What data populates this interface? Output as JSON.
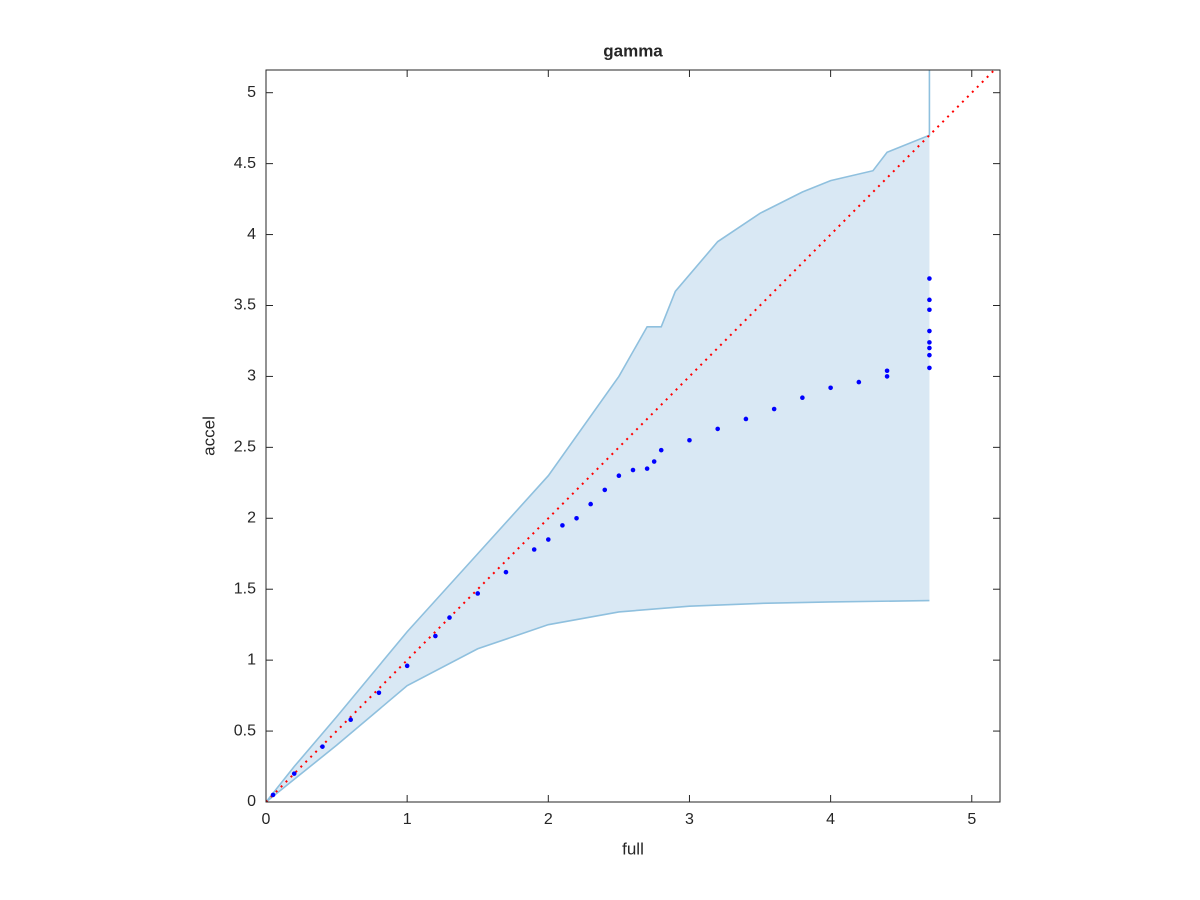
{
  "chart_data": {
    "type": "scatter",
    "title": "gamma",
    "x_label": "full",
    "y_label": "accel",
    "xlim": [
      0,
      5.2
    ],
    "ylim": [
      0,
      5.16
    ],
    "xticks": [
      0,
      1,
      2,
      3,
      4,
      5
    ],
    "yticks": [
      0,
      0.5,
      1,
      1.5,
      2,
      2.5,
      3,
      3.5,
      4,
      4.5,
      5
    ],
    "band_fill": "#d9e8f4",
    "series": [
      {
        "type": "scatter",
        "color": "#0000ff",
        "x": [
          0.05,
          0.2,
          0.4,
          0.6,
          0.8,
          1.0,
          1.2,
          1.3,
          1.5,
          1.7,
          1.9,
          2.0,
          2.1,
          2.2,
          2.3,
          2.4,
          2.5,
          2.6,
          2.7,
          2.75,
          2.8,
          3.0,
          3.2,
          3.4,
          3.6,
          3.8,
          4.0,
          4.2,
          4.4,
          4.4,
          4.7,
          4.7,
          4.7,
          4.7,
          4.7,
          4.7,
          4.7,
          4.7
        ],
        "values": [
          0.05,
          0.2,
          0.39,
          0.58,
          0.77,
          0.96,
          1.17,
          1.3,
          1.47,
          1.62,
          1.78,
          1.85,
          1.95,
          2.0,
          2.1,
          2.2,
          2.3,
          2.34,
          2.35,
          2.4,
          2.48,
          2.55,
          2.63,
          2.7,
          2.77,
          2.85,
          2.92,
          2.96,
          3.0,
          3.04,
          3.06,
          3.15,
          3.2,
          3.24,
          3.32,
          3.47,
          3.54,
          3.69
        ]
      },
      {
        "type": "line",
        "color": "#8fc0de",
        "x": [
          0,
          0.2,
          0.5,
          1.0,
          1.5,
          2.0,
          2.5,
          2.7,
          2.8,
          2.9,
          3.2,
          3.5,
          3.8,
          4.0,
          4.3,
          4.4,
          4.7,
          4.7
        ],
        "values": [
          0,
          0.25,
          0.6,
          1.2,
          1.75,
          2.3,
          3.0,
          3.35,
          3.35,
          3.6,
          3.95,
          4.15,
          4.3,
          4.38,
          4.45,
          4.58,
          4.7,
          5.16
        ]
      },
      {
        "type": "line",
        "color": "#8fc0de",
        "x": [
          0,
          0.5,
          1.0,
          1.5,
          2.0,
          2.5,
          3.0,
          3.5,
          4.0,
          4.7
        ],
        "values": [
          0,
          0.4,
          0.82,
          1.08,
          1.25,
          1.34,
          1.38,
          1.4,
          1.41,
          1.42
        ]
      },
      {
        "type": "line",
        "color": "#ff0000",
        "line_style": "dotted",
        "x": [
          0,
          5.2
        ],
        "values": [
          0,
          5.2
        ]
      }
    ]
  }
}
